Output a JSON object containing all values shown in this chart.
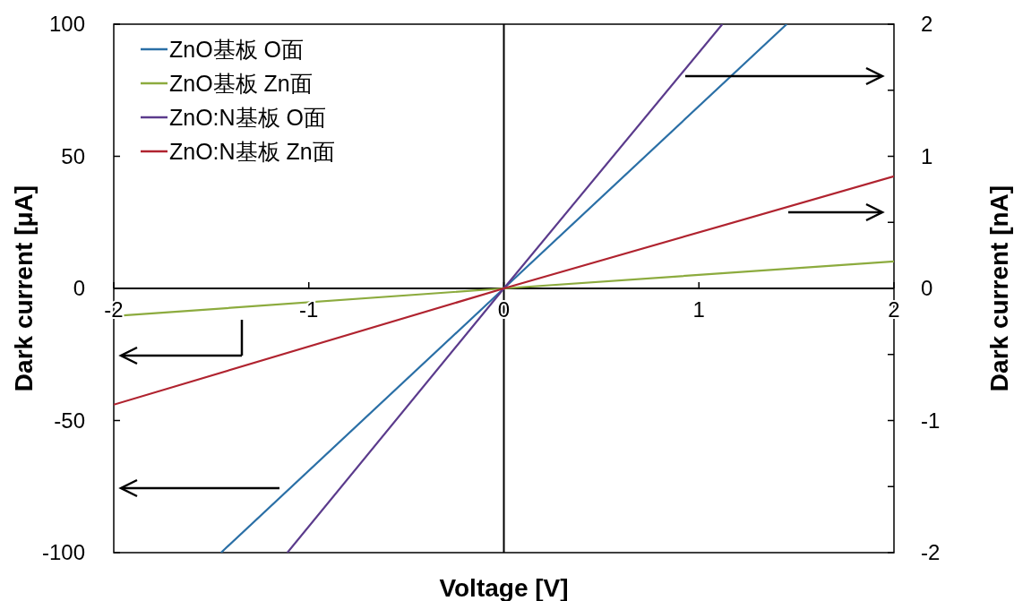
{
  "chart_data": {
    "type": "line",
    "xlabel": "Voltage [V]",
    "ylabel": "Dark current [μA]",
    "y2label": "Dark current [nA]",
    "xlim": [
      -2,
      2
    ],
    "xticks": [
      -2,
      -1,
      0,
      1,
      2
    ],
    "ylim": [
      -100,
      100
    ],
    "yticks": [
      -100,
      -50,
      0,
      50,
      100
    ],
    "y2lim": [
      -2,
      2
    ],
    "y2ticks": [
      -2,
      {
        "value": -1.5,
        "label": null
      },
      -1,
      {
        "value": -0.5,
        "label": null
      },
      0,
      {
        "value": 0.5,
        "label": null
      },
      1,
      {
        "value": 1.5,
        "label": null
      },
      2
    ],
    "legend": "top left",
    "series": [
      {
        "name": "ZnO基板 O面",
        "color": "#2a6fa6",
        "x": [
          -1.45,
          0,
          1.45
        ],
        "values": [
          -100,
          0,
          100
        ]
      },
      {
        "name": "ZnO基板 Zn面",
        "color": "#8cab3e",
        "x": [
          -2,
          0,
          2
        ],
        "values": [
          -10.5,
          0,
          10.2
        ]
      },
      {
        "name": "ZnO:N基板 O面",
        "color": "#5b3b8c",
        "x": [
          -1.11,
          0,
          1.12
        ],
        "values": [
          -100,
          0,
          100
        ]
      },
      {
        "name": "ZnO:N基板 Zn面",
        "color": "#b0232f",
        "x": [
          -2,
          0,
          2
        ],
        "values": [
          -44,
          0,
          42.4
        ]
      }
    ]
  }
}
